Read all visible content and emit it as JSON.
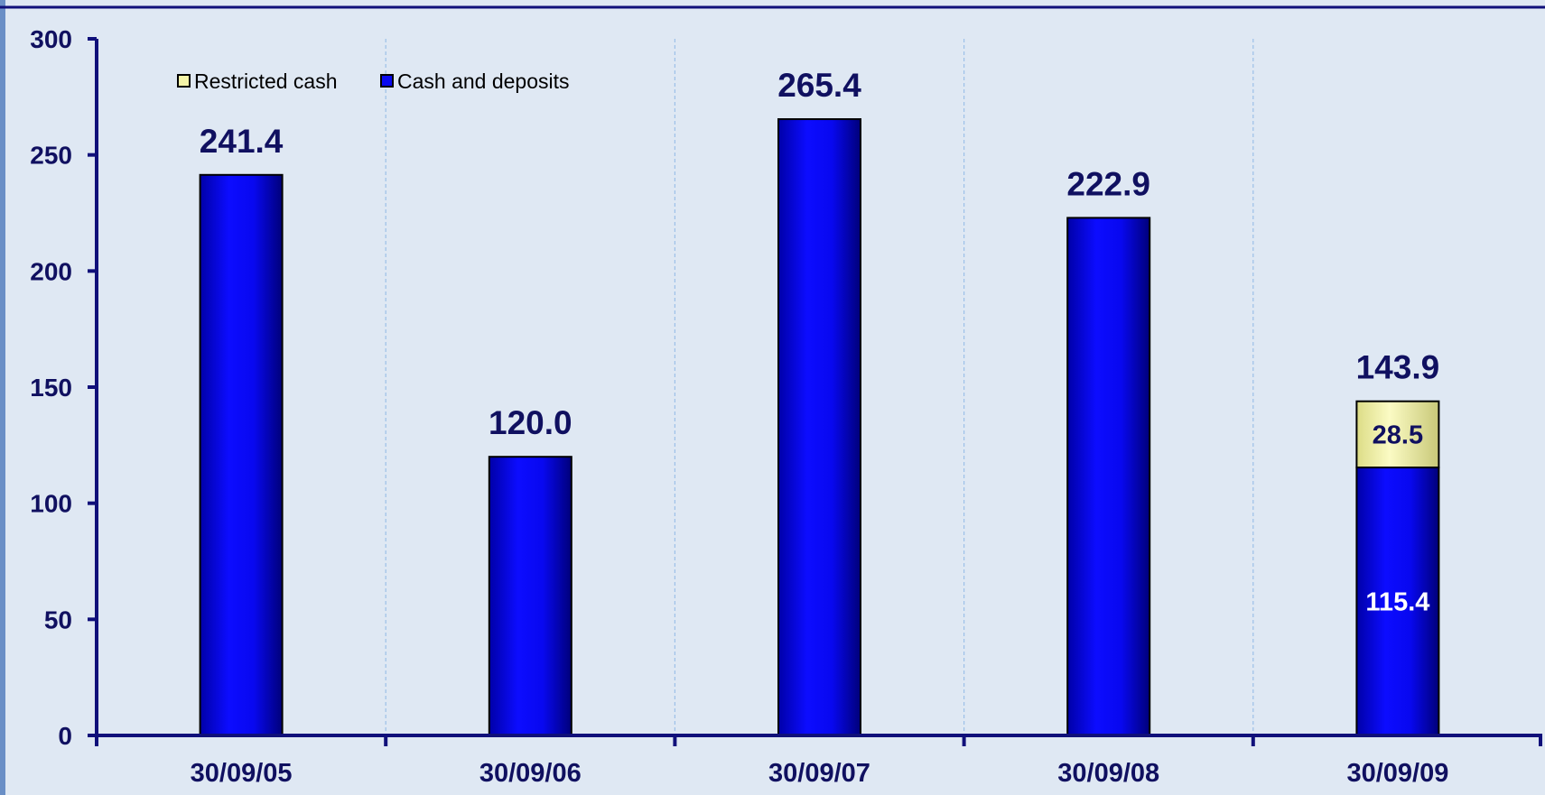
{
  "chart_data": {
    "type": "bar",
    "stacked": true,
    "title": "",
    "xlabel": "",
    "ylabel": "",
    "categories": [
      "30/09/05",
      "30/09/06",
      "30/09/07",
      "30/09/08",
      "30/09/09"
    ],
    "series": [
      {
        "name": "Cash and deposits",
        "values": [
          241.4,
          120.0,
          265.4,
          222.9,
          115.4
        ],
        "labels": [
          "",
          "",
          "",
          "",
          "115.4"
        ],
        "color": "#0a0af0"
      },
      {
        "name": "Restricted cash",
        "values": [
          0,
          0,
          0,
          0,
          28.5
        ],
        "labels": [
          "",
          "",
          "",
          "",
          "28.5"
        ],
        "color": "#f5f5a8"
      }
    ],
    "totals": [
      241.4,
      120.0,
      265.4,
      222.9,
      143.9
    ],
    "total_labels": [
      "241.4",
      "120.0",
      "265.4",
      "222.9",
      "143.9"
    ],
    "ylim": [
      0,
      300
    ],
    "yticks": [
      "0",
      "50",
      "100",
      "150",
      "200",
      "250",
      "300"
    ],
    "grid": "vertical dashed between categories",
    "legend": {
      "position": "top-left",
      "entries": [
        "Restricted cash",
        "Cash and deposits"
      ]
    },
    "colors": {
      "axis": "#10107a",
      "text": "#101060",
      "grid": "#9cc0e8",
      "background": "#dfe8f3"
    }
  }
}
